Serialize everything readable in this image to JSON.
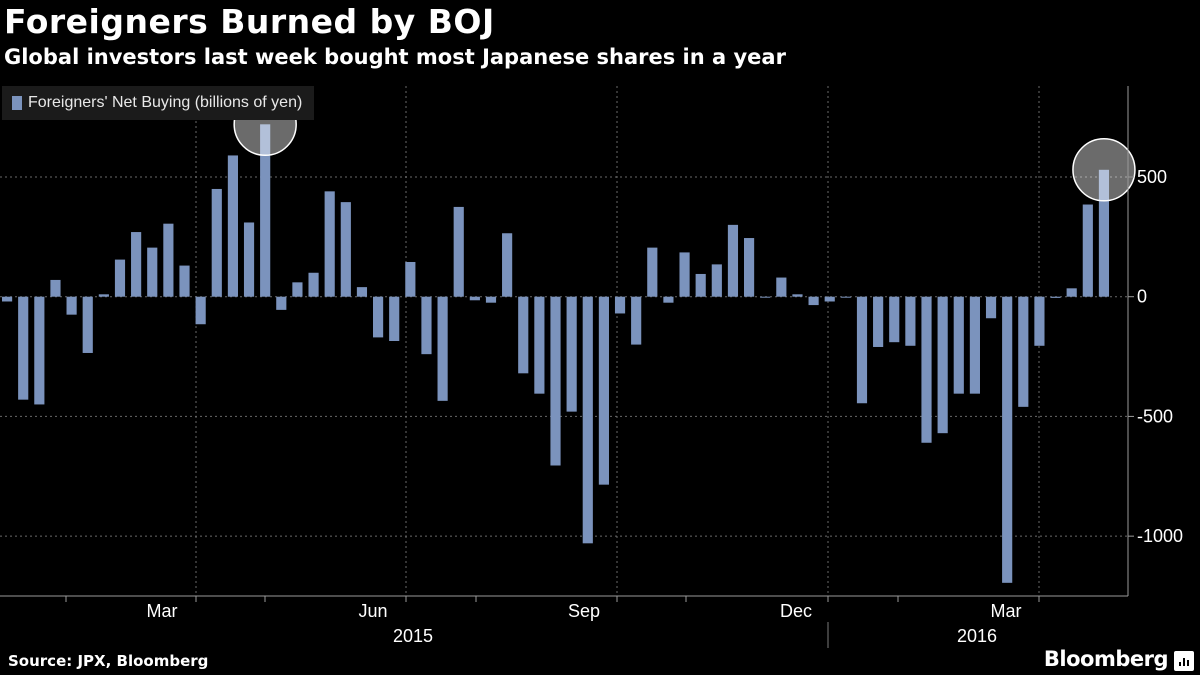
{
  "header": {
    "title": "Foreigners Burned by BOJ",
    "subtitle": "Global investors last week bought most Japanese shares in a year"
  },
  "legend": {
    "label": "Foreigners' Net Buying (billions of yen)"
  },
  "footer": {
    "source": "Source: JPX, Bloomberg",
    "brand": "Bloomberg"
  },
  "colors": {
    "bar": "#7b93bd",
    "background": "#000000",
    "text": "#ffffff"
  },
  "chart_data": {
    "type": "bar",
    "series": [
      {
        "name": "Foreigners' Net Buying (billions of yen)",
        "values": [
          -20,
          -430,
          -450,
          70,
          -75,
          -235,
          10,
          155,
          270,
          205,
          305,
          130,
          -115,
          450,
          590,
          310,
          720,
          -55,
          60,
          100,
          440,
          395,
          40,
          -170,
          -185,
          145,
          -240,
          -435,
          375,
          -15,
          -25,
          265,
          -320,
          -405,
          -705,
          -480,
          -1030,
          -785,
          -70,
          -200,
          205,
          -25,
          185,
          95,
          135,
          300,
          245,
          0,
          80,
          10,
          -35,
          -20,
          0,
          -445,
          -210,
          -190,
          -205,
          -610,
          -570,
          -405,
          -405,
          -90,
          -1195,
          -460,
          -205,
          -5,
          35,
          385,
          530
        ]
      }
    ],
    "ylim": [
      -1250,
      880
    ],
    "yticks": [
      -1000,
      -500,
      0,
      500
    ],
    "ytick_labels": [
      "-1000",
      "-500",
      "0",
      "500"
    ],
    "x_month_labels": [
      "Mar",
      "Jun",
      "Sep",
      "Dec",
      "Mar"
    ],
    "x_year_labels": [
      "2015",
      "2016"
    ],
    "highlighted_bars": [
      16,
      68
    ],
    "grid": "horizontal dashed"
  }
}
